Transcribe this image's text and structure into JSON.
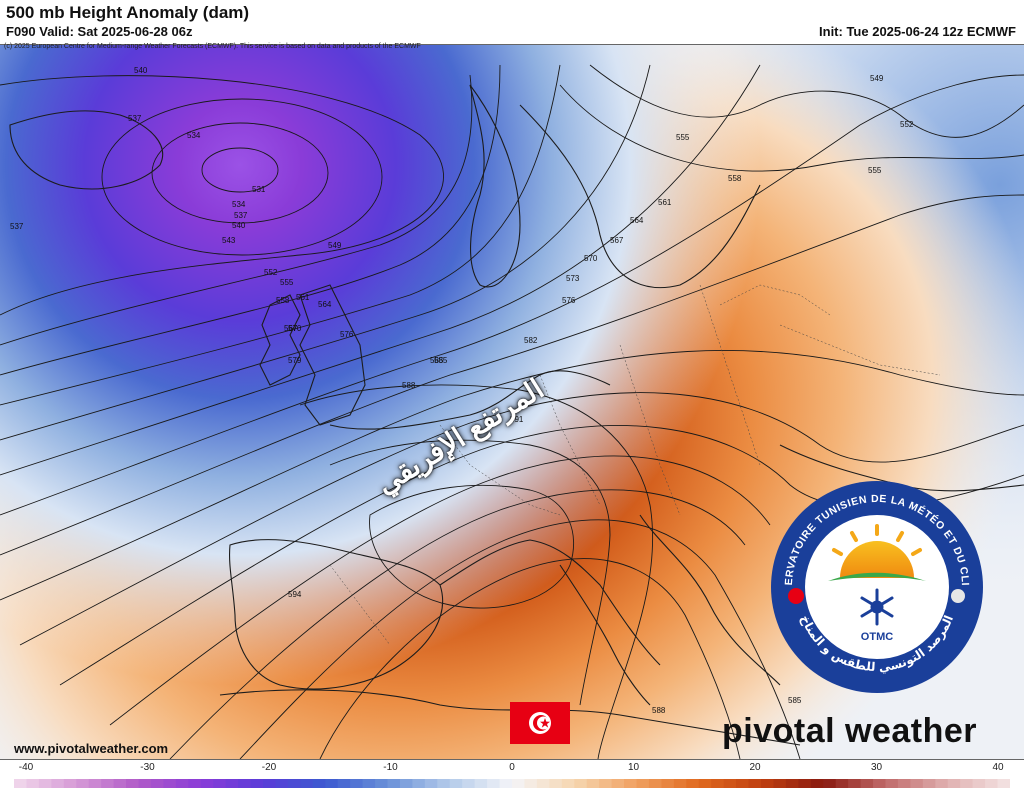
{
  "header": {
    "title": "500 mb Height Anomaly (dam)",
    "valid": "F090 Valid: Sat 2025-06-28 06z",
    "init": "Init: Tue 2025-06-24 12z ECMWF",
    "copyright": "(c) 2025 European Centre for Medium-range Weather Forecasts (ECMWF). This service is based on data and products of the ECMWF"
  },
  "overlay": {
    "arabic_label": "المرتفع الإفريقي",
    "otmc_ring_text_fr": "OBSERVATOIRE TUNISIEN DE LA MÉTÉO ET DU CLIMAT",
    "otmc_ring_text_ar": "المرصد التونسي للطقس و المناخ",
    "otmc_abbrev": "OTMC"
  },
  "footer": {
    "website": "www.pivotalweather.com",
    "brand": "pivotal weather"
  },
  "colorbar": {
    "ticks": [
      "-40",
      "-30",
      "-20",
      "-10",
      "0",
      "10",
      "20",
      "30",
      "40"
    ],
    "stops": [
      {
        "v": -40,
        "c": "#f2d9ec"
      },
      {
        "v": -35,
        "c": "#d69ad6"
      },
      {
        "v": -30,
        "c": "#b05ac8"
      },
      {
        "v": -25,
        "c": "#8a3cd8"
      },
      {
        "v": -20,
        "c": "#5a3cd8"
      },
      {
        "v": -15,
        "c": "#3c5ad0"
      },
      {
        "v": -10,
        "c": "#6a90d8"
      },
      {
        "v": -5,
        "c": "#b4cbea"
      },
      {
        "v": 0,
        "c": "#f4f4f8"
      },
      {
        "v": 5,
        "c": "#f6d6b0"
      },
      {
        "v": 10,
        "c": "#f0a060"
      },
      {
        "v": 15,
        "c": "#e06a20"
      },
      {
        "v": 20,
        "c": "#c04010"
      },
      {
        "v": 25,
        "c": "#8a1a10"
      },
      {
        "v": 30,
        "c": "#c06a6a"
      },
      {
        "v": 35,
        "c": "#e0b0b0"
      },
      {
        "v": 40,
        "c": "#f4e4e4"
      }
    ]
  },
  "contour_labels": [
    "540",
    "537",
    "534",
    "531",
    "534",
    "537",
    "540",
    "543",
    "537",
    "549",
    "552",
    "555",
    "558",
    "561",
    "564",
    "567",
    "570",
    "573",
    "576",
    "579",
    "582",
    "585",
    "588",
    "591",
    "594",
    "555",
    "549",
    "552",
    "555",
    "558",
    "561",
    "564",
    "567",
    "570",
    "576",
    "585",
    "588",
    "585"
  ],
  "colors": {
    "low_anomaly": "#5a2fd0",
    "high_anomaly": "#8a1a10",
    "tunisia_red": "#e70013"
  }
}
